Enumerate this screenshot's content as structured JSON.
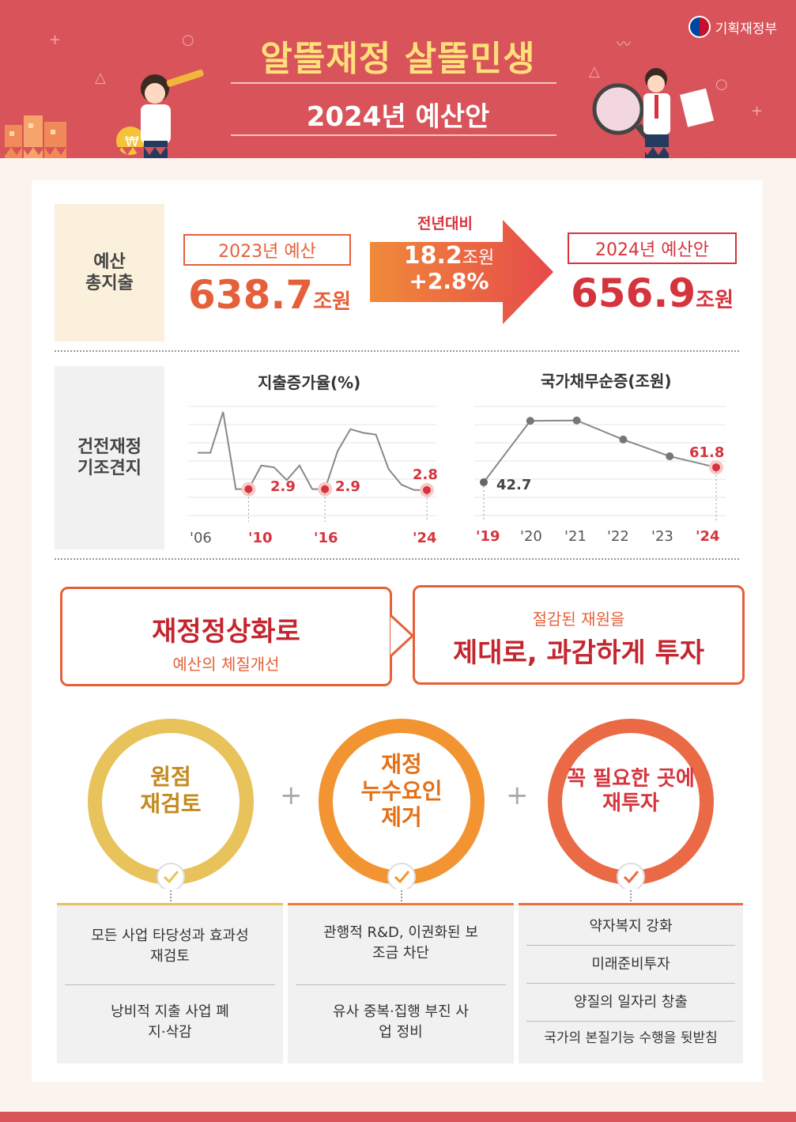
{
  "header": {
    "title_part1": "알뜰재정",
    "title_part2": "살뜰민생",
    "subtitle": "2024년 예산안",
    "ministry": "기획재정부"
  },
  "budget": {
    "side_label_line1": "예산",
    "side_label_line2": "총지출",
    "prev_label": "2023년 예산",
    "prev_value": "638.7",
    "prev_unit": "조원",
    "compare_label": "전년대비",
    "diff_value": "18.2",
    "diff_unit": "조원",
    "diff_pct": "+2.8%",
    "next_label": "2024년 예산안",
    "next_value": "656.9",
    "next_unit": "조원"
  },
  "soundness": {
    "side_label_line1": "건전재정",
    "side_label_line2": "기조견지"
  },
  "chart_data": [
    {
      "type": "line",
      "title": "지출증가율(%)",
      "x": [
        2006,
        2007,
        2008,
        2009,
        2010,
        2011,
        2012,
        2013,
        2014,
        2015,
        2016,
        2017,
        2018,
        2019,
        2020,
        2021,
        2022,
        2023,
        2024
      ],
      "x_tick_labels": [
        "'06",
        "'10",
        "'16",
        "'24"
      ],
      "values": [
        6.9,
        6.9,
        11.4,
        2.9,
        2.9,
        5.5,
        5.3,
        3.9,
        5.5,
        2.9,
        2.9,
        7.1,
        9.5,
        9.1,
        8.9,
        5.1,
        3.4,
        2.8,
        2.8
      ],
      "highlighted_labels": [
        "2.9",
        "2.9",
        "2.8"
      ],
      "ylim": [
        0,
        12
      ]
    },
    {
      "type": "line",
      "title": "국가채무순증(조원)",
      "x": [
        2019,
        2020,
        2021,
        2022,
        2023,
        2024
      ],
      "x_tick_labels": [
        "'19",
        "'20",
        "'21",
        "'22",
        "'23",
        "'24"
      ],
      "values": [
        42.7,
        121.5,
        122.0,
        97.5,
        76.0,
        61.8
      ],
      "highlighted_labels": [
        "42.7",
        "61.8"
      ],
      "ylim": [
        0,
        140
      ]
    }
  ],
  "messages": {
    "left_main": "재정정상화로",
    "left_sub": "예산의 체질개선",
    "right_sub": "절감된 재원을",
    "right_main": "제대로, 과감하게 투자"
  },
  "pillars": [
    {
      "line1": "원점",
      "line2": "재검토",
      "line3": "",
      "color": "#e8c25a",
      "text_color": "#c48a1e",
      "items": [
        "모든 사업 타당성과 효과성 재검토",
        "낭비적 지출 사업 폐지·삭감"
      ]
    },
    {
      "line1": "재정",
      "line2": "누수요인",
      "line3": "제거",
      "color": "#f29431",
      "text_color": "#e56f16",
      "items": [
        "관행적 R&D, 이권화된 보조금 차단",
        "유사 중복·집행 부진 사업 정비"
      ]
    },
    {
      "line1": "꼭 필요한 곳에",
      "line2": "재투자",
      "line3": "",
      "color": "#ea6a45",
      "text_color": "#d6343d",
      "items": [
        "약자복지 강화",
        "미래준비투자",
        "양질의 일자리 창출",
        "국가의 본질기능 수행을 뒷받침"
      ]
    }
  ],
  "plus": "+",
  "colors": {
    "header_red": "#d8535a",
    "accent_orange": "#e5603a",
    "deep_red": "#d6343d",
    "highlight_yellow": "#ffe07a"
  }
}
